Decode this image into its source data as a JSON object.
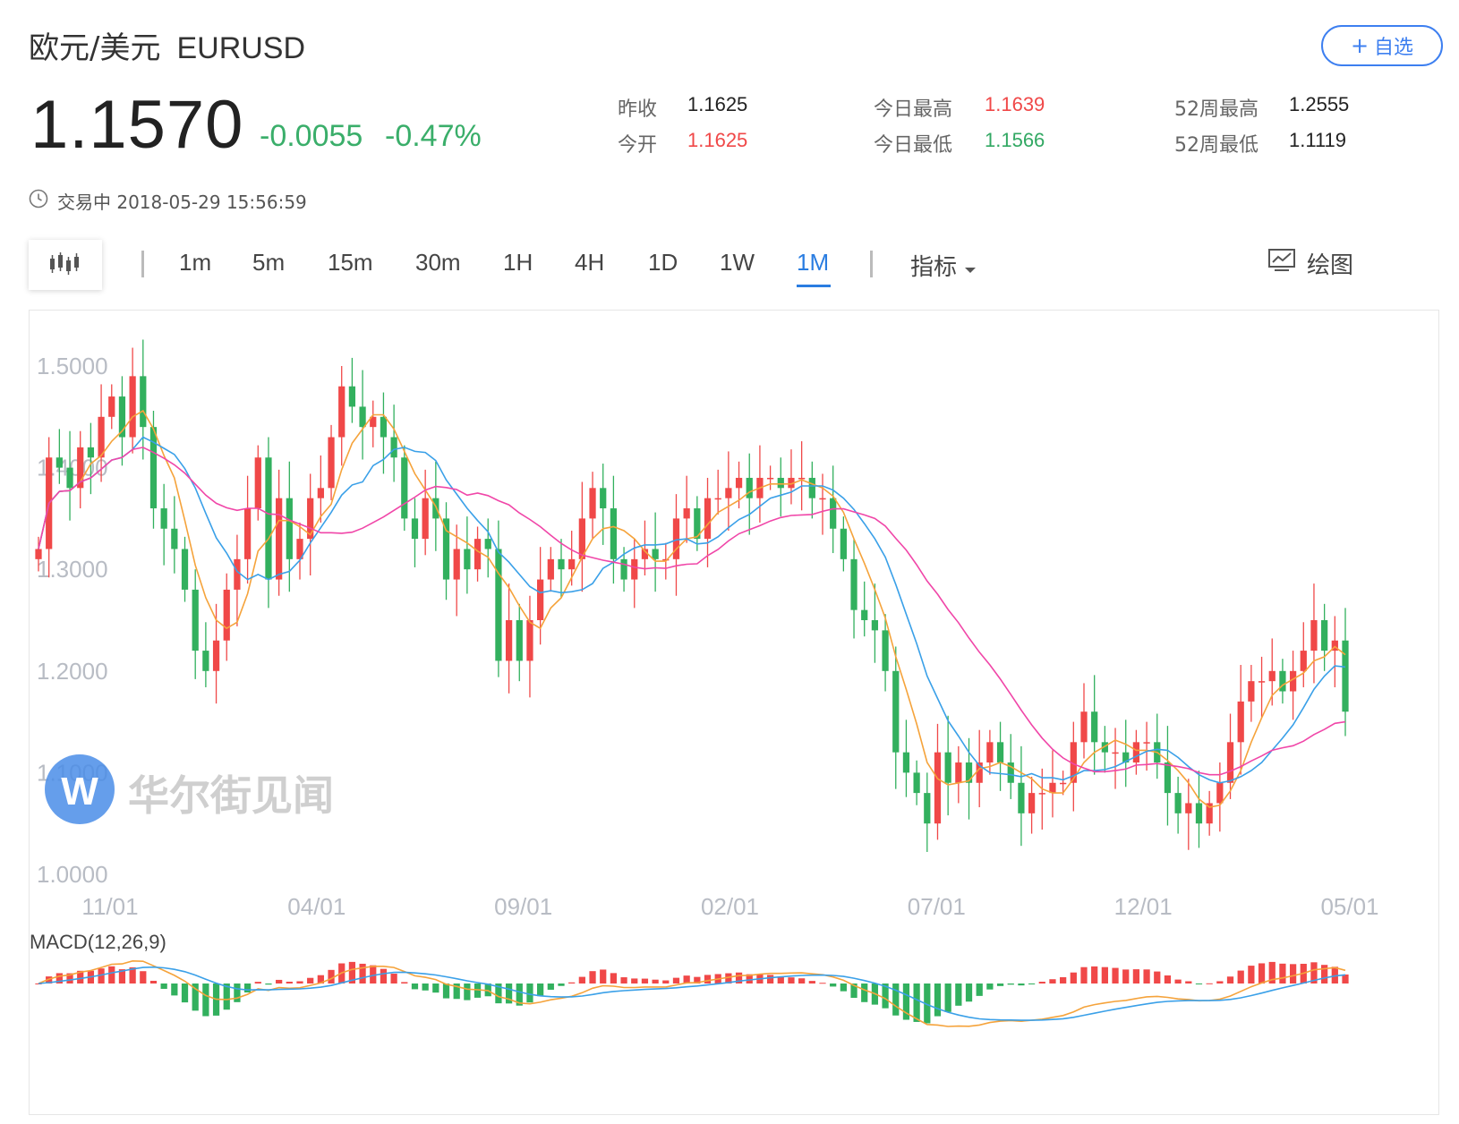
{
  "header": {
    "name": "欧元/美元",
    "code": "EURUSD",
    "watch_label": "自选",
    "watch_plus": "+"
  },
  "quote": {
    "price": "1.1570",
    "change": "-0.0055",
    "change_pct": "-0.47%",
    "prev_close_label": "昨收",
    "prev_close": "1.1625",
    "open_label": "今开",
    "open": "1.1625",
    "day_high_label": "今日最高",
    "day_high": "1.1639",
    "day_low_label": "今日最低",
    "day_low": "1.1566",
    "w52_high_label": "52周最高",
    "w52_high": "1.2555",
    "w52_low_label": "52周最低",
    "w52_low": "1.1119",
    "status": "交易中 2018-05-29 15:56:59"
  },
  "toolbar": {
    "chart_type_icon": "candlestick-icon",
    "periods": [
      "1m",
      "5m",
      "15m",
      "30m",
      "1H",
      "4H",
      "1D",
      "1W",
      "1M"
    ],
    "active_period": "1M",
    "indicator_label": "指标",
    "draw_label": "绘图"
  },
  "chart": {
    "y_ticks": [
      "1.5000",
      "1.4000",
      "1.3000",
      "1.2000",
      "1.1000",
      "1.0000"
    ],
    "x_ticks": [
      "11/01",
      "04/01",
      "09/01",
      "02/01",
      "07/01",
      "12/01",
      "05/01"
    ],
    "macd_label": "MACD(12,26,9)",
    "watermark": "华尔街见闻",
    "colors": {
      "up": "#f04848",
      "down": "#32b05e",
      "ma_fast": "#f5a33b",
      "ma_mid": "#3aa0e8",
      "ma_slow": "#f046a8"
    }
  },
  "chart_data": {
    "type": "candlestick",
    "ylim": [
      1.0,
      1.5
    ],
    "closes": [
      1.32,
      1.41,
      1.4,
      1.38,
      1.42,
      1.41,
      1.45,
      1.47,
      1.43,
      1.49,
      1.44,
      1.36,
      1.34,
      1.32,
      1.28,
      1.22,
      1.2,
      1.23,
      1.28,
      1.31,
      1.36,
      1.41,
      1.29,
      1.37,
      1.31,
      1.33,
      1.37,
      1.38,
      1.43,
      1.48,
      1.46,
      1.44,
      1.45,
      1.43,
      1.41,
      1.35,
      1.33,
      1.37,
      1.35,
      1.29,
      1.32,
      1.3,
      1.33,
      1.32,
      1.21,
      1.25,
      1.21,
      1.25,
      1.29,
      1.31,
      1.3,
      1.31,
      1.35,
      1.38,
      1.36,
      1.31,
      1.29,
      1.31,
      1.32,
      1.31,
      1.31,
      1.35,
      1.36,
      1.33,
      1.37,
      1.37,
      1.38,
      1.39,
      1.37,
      1.39,
      1.39,
      1.38,
      1.39,
      1.39,
      1.37,
      1.37,
      1.34,
      1.31,
      1.26,
      1.25,
      1.24,
      1.2,
      1.12,
      1.1,
      1.08,
      1.05,
      1.12,
      1.09,
      1.11,
      1.09,
      1.11,
      1.13,
      1.11,
      1.09,
      1.06,
      1.08,
      1.08,
      1.09,
      1.09,
      1.13,
      1.16,
      1.13,
      1.12,
      1.12,
      1.11,
      1.13,
      1.13,
      1.11,
      1.08,
      1.06,
      1.07,
      1.05,
      1.07,
      1.09,
      1.13,
      1.17,
      1.19,
      1.19,
      1.2,
      1.18,
      1.2,
      1.22,
      1.25,
      1.22,
      1.23,
      1.16
    ],
    "macd_label": "MACD(12,26,9)"
  }
}
